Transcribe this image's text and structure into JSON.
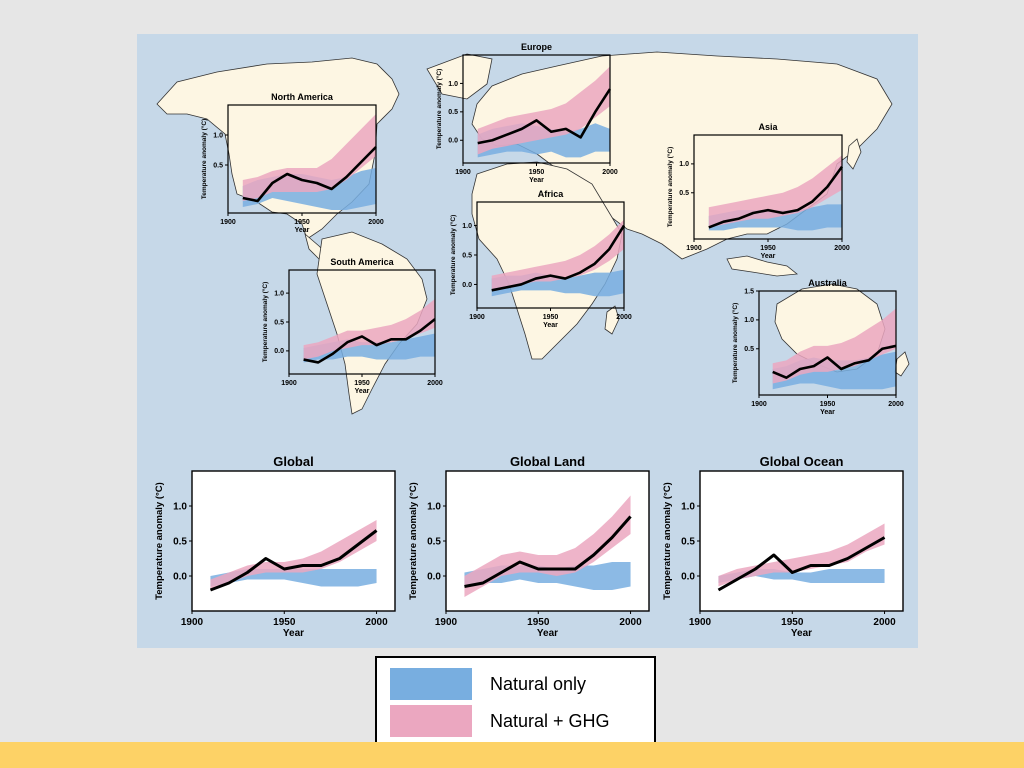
{
  "colors": {
    "page_background": "#e6e6e6",
    "figure_background": "#c6d8e8",
    "land": "#fdf6e3",
    "natural_band": "#78aee0",
    "ghg_band": "#eba7c0",
    "observed_line": "#000000",
    "footer_bar": "#fdd266"
  },
  "legend": {
    "items": [
      {
        "label": "Natural only",
        "color": "#78aee0"
      },
      {
        "label": "Natural + GHG",
        "color": "#eba7c0"
      }
    ]
  },
  "chart_data": [
    {
      "type": "line",
      "title": "North America",
      "ylabel": "Temperature anomaly (°C)",
      "xlabel": "Year",
      "x": [
        1910,
        1920,
        1930,
        1940,
        1950,
        1960,
        1970,
        1980,
        1990,
        2000
      ],
      "xlim": [
        1900,
        2000
      ],
      "ylim": [
        -0.3,
        1.5
      ],
      "xticks": [
        "1900",
        "1950",
        "2000"
      ],
      "yticks": [
        "0.5",
        "1.0"
      ],
      "series": [
        {
          "name": "Natural only",
          "kind": "band",
          "lower": [
            -0.2,
            -0.15,
            -0.05,
            -0.1,
            -0.15,
            -0.2,
            -0.25,
            -0.25,
            -0.2,
            -0.15
          ],
          "upper": [
            0.15,
            0.25,
            0.3,
            0.35,
            0.35,
            0.3,
            0.25,
            0.3,
            0.4,
            0.45
          ]
        },
        {
          "name": "Natural + GHG",
          "kind": "band",
          "lower": [
            -0.1,
            -0.05,
            0.05,
            0.05,
            0.05,
            0.05,
            0.1,
            0.25,
            0.45,
            0.65
          ],
          "upper": [
            0.25,
            0.3,
            0.4,
            0.45,
            0.45,
            0.45,
            0.6,
            0.85,
            1.1,
            1.35
          ]
        },
        {
          "kind": "observed",
          "values": [
            -0.05,
            -0.1,
            0.2,
            0.35,
            0.25,
            0.2,
            0.1,
            0.3,
            0.55,
            0.8
          ]
        }
      ]
    },
    {
      "type": "line",
      "title": "Europe",
      "ylabel": "Temperature anomaly (°C)",
      "xlabel": "Year",
      "x": [
        1910,
        1920,
        1930,
        1940,
        1950,
        1960,
        1970,
        1980,
        1990,
        2000
      ],
      "xlim": [
        1900,
        2000
      ],
      "ylim": [
        -0.4,
        1.5
      ],
      "xticks": [
        "1900",
        "1950",
        "2000"
      ],
      "yticks": [
        "0.0",
        "0.5",
        "1.0"
      ],
      "series": [
        {
          "name": "Natural only",
          "kind": "band",
          "lower": [
            -0.3,
            -0.25,
            -0.2,
            -0.2,
            -0.25,
            -0.2,
            -0.3,
            -0.3,
            -0.2,
            -0.2
          ],
          "upper": [
            0.1,
            0.2,
            0.25,
            0.3,
            0.25,
            0.2,
            0.15,
            0.2,
            0.3,
            0.2
          ]
        },
        {
          "name": "Natural + GHG",
          "kind": "band",
          "lower": [
            -0.25,
            -0.15,
            -0.1,
            -0.05,
            0.0,
            0.05,
            0.1,
            0.2,
            0.4,
            0.6
          ],
          "upper": [
            0.2,
            0.3,
            0.4,
            0.45,
            0.5,
            0.55,
            0.65,
            0.85,
            1.05,
            1.3
          ]
        },
        {
          "kind": "observed",
          "values": [
            -0.05,
            0.0,
            0.1,
            0.2,
            0.35,
            0.15,
            0.2,
            0.05,
            0.5,
            0.9
          ]
        }
      ]
    },
    {
      "type": "line",
      "title": "Asia",
      "ylabel": "Temperature anomaly (°C)",
      "xlabel": "Year",
      "x": [
        1910,
        1920,
        1930,
        1940,
        1950,
        1960,
        1970,
        1980,
        1990,
        2000
      ],
      "xlim": [
        1900,
        2000
      ],
      "ylim": [
        -0.3,
        1.5
      ],
      "xticks": [
        "1900",
        "1950",
        "2000"
      ],
      "yticks": [
        "0.5",
        "1.0"
      ],
      "series": [
        {
          "name": "Natural only",
          "kind": "band",
          "lower": [
            -0.15,
            -0.15,
            -0.1,
            -0.1,
            -0.1,
            -0.1,
            -0.15,
            -0.15,
            -0.1,
            -0.1
          ],
          "upper": [
            0.1,
            0.15,
            0.2,
            0.2,
            0.2,
            0.2,
            0.2,
            0.25,
            0.3,
            0.3
          ]
        },
        {
          "name": "Natural + GHG",
          "kind": "band",
          "lower": [
            -0.1,
            -0.05,
            0.0,
            0.05,
            0.05,
            0.1,
            0.15,
            0.25,
            0.4,
            0.55
          ],
          "upper": [
            0.25,
            0.3,
            0.35,
            0.4,
            0.45,
            0.5,
            0.6,
            0.75,
            0.95,
            1.15
          ]
        },
        {
          "kind": "observed",
          "values": [
            -0.1,
            0.0,
            0.05,
            0.15,
            0.2,
            0.15,
            0.2,
            0.35,
            0.6,
            0.95
          ]
        }
      ]
    },
    {
      "type": "line",
      "title": "Africa",
      "ylabel": "Temperature anomaly (°C)",
      "xlabel": "Year",
      "x": [
        1910,
        1920,
        1930,
        1940,
        1950,
        1960,
        1970,
        1980,
        1990,
        2000
      ],
      "xlim": [
        1900,
        2000
      ],
      "ylim": [
        -0.4,
        1.4
      ],
      "xticks": [
        "1900",
        "1950",
        "2000"
      ],
      "yticks": [
        "0.0",
        "0.5",
        "1.0"
      ],
      "series": [
        {
          "name": "Natural only",
          "kind": "band",
          "lower": [
            -0.2,
            -0.15,
            -0.1,
            -0.1,
            -0.1,
            -0.15,
            -0.15,
            -0.2,
            -0.2,
            -0.15
          ],
          "upper": [
            0.1,
            0.15,
            0.15,
            0.2,
            0.15,
            0.1,
            0.15,
            0.2,
            0.2,
            0.25
          ]
        },
        {
          "name": "Natural + GHG",
          "kind": "band",
          "lower": [
            -0.1,
            -0.05,
            0.0,
            0.05,
            0.05,
            0.1,
            0.15,
            0.25,
            0.4,
            0.6
          ],
          "upper": [
            0.15,
            0.2,
            0.25,
            0.3,
            0.35,
            0.4,
            0.5,
            0.65,
            0.85,
            1.1
          ]
        },
        {
          "kind": "observed",
          "values": [
            -0.1,
            -0.05,
            0.0,
            0.1,
            0.15,
            0.1,
            0.2,
            0.35,
            0.6,
            1.0
          ]
        }
      ]
    },
    {
      "type": "line",
      "title": "South America",
      "ylabel": "Temperature anomaly (°C)",
      "xlabel": "Year",
      "x": [
        1910,
        1920,
        1930,
        1940,
        1950,
        1960,
        1970,
        1980,
        1990,
        2000
      ],
      "xlim": [
        1900,
        2000
      ],
      "ylim": [
        -0.4,
        1.4
      ],
      "xticks": [
        "1900",
        "1950",
        "2000"
      ],
      "yticks": [
        "0.0",
        "0.5",
        "1.0"
      ],
      "series": [
        {
          "name": "Natural only",
          "kind": "band",
          "lower": [
            -0.2,
            -0.15,
            -0.15,
            -0.1,
            -0.1,
            -0.15,
            -0.15,
            -0.15,
            -0.1,
            -0.1
          ],
          "upper": [
            0.05,
            0.1,
            0.15,
            0.2,
            0.15,
            0.15,
            0.15,
            0.2,
            0.25,
            0.3
          ]
        },
        {
          "name": "Natural + GHG",
          "kind": "band",
          "lower": [
            -0.15,
            -0.1,
            0.0,
            0.05,
            0.1,
            0.1,
            0.15,
            0.2,
            0.3,
            0.4
          ],
          "upper": [
            0.1,
            0.15,
            0.25,
            0.35,
            0.35,
            0.4,
            0.45,
            0.55,
            0.7,
            0.9
          ]
        },
        {
          "kind": "observed",
          "values": [
            -0.15,
            -0.2,
            -0.05,
            0.15,
            0.25,
            0.1,
            0.2,
            0.2,
            0.35,
            0.55
          ]
        }
      ]
    },
    {
      "type": "line",
      "title": "Australia",
      "ylabel": "Temperature anomaly (°C)",
      "xlabel": "Year",
      "x": [
        1910,
        1920,
        1930,
        1940,
        1950,
        1960,
        1970,
        1980,
        1990,
        2000
      ],
      "xlim": [
        1900,
        2000
      ],
      "ylim": [
        -0.3,
        1.5
      ],
      "xticks": [
        "1900",
        "1950",
        "2000"
      ],
      "yticks": [
        "0.5",
        "1.0",
        "1.5"
      ],
      "series": [
        {
          "name": "Natural only",
          "kind": "band",
          "lower": [
            -0.2,
            -0.15,
            -0.1,
            -0.1,
            -0.15,
            -0.2,
            -0.2,
            -0.2,
            -0.2,
            -0.15
          ],
          "upper": [
            0.15,
            0.2,
            0.3,
            0.35,
            0.3,
            0.3,
            0.3,
            0.35,
            0.4,
            0.45
          ]
        },
        {
          "name": "Natural + GHG",
          "kind": "band",
          "lower": [
            -0.1,
            -0.05,
            0.05,
            0.1,
            0.1,
            0.15,
            0.2,
            0.3,
            0.4,
            0.5
          ],
          "upper": [
            0.25,
            0.3,
            0.45,
            0.55,
            0.55,
            0.6,
            0.7,
            0.85,
            1.0,
            1.2
          ]
        },
        {
          "kind": "observed",
          "values": [
            0.1,
            0.0,
            0.15,
            0.2,
            0.35,
            0.15,
            0.25,
            0.3,
            0.5,
            0.55
          ]
        }
      ]
    },
    {
      "type": "line",
      "title": "Global",
      "ylabel": "Temperature anomaly (°C)",
      "xlabel": "Year",
      "x": [
        1910,
        1920,
        1930,
        1940,
        1950,
        1960,
        1970,
        1980,
        1990,
        2000
      ],
      "xlim": [
        1900,
        2010
      ],
      "ylim": [
        -0.5,
        1.5
      ],
      "xticks": [
        "1900",
        "1950",
        "2000"
      ],
      "yticks": [
        "0.0",
        "0.5",
        "1.0"
      ],
      "series": [
        {
          "name": "Natural only",
          "kind": "band",
          "lower": [
            -0.15,
            -0.1,
            -0.05,
            -0.05,
            -0.05,
            -0.1,
            -0.15,
            -0.15,
            -0.15,
            -0.1
          ],
          "upper": [
            0.0,
            0.05,
            0.1,
            0.1,
            0.1,
            0.1,
            0.1,
            0.1,
            0.1,
            0.1
          ]
        },
        {
          "name": "Natural + GHG",
          "kind": "band",
          "lower": [
            -0.2,
            -0.1,
            0.0,
            0.05,
            0.05,
            0.05,
            0.1,
            0.2,
            0.35,
            0.5
          ],
          "upper": [
            -0.05,
            0.05,
            0.15,
            0.2,
            0.2,
            0.25,
            0.35,
            0.5,
            0.65,
            0.8
          ]
        },
        {
          "kind": "observed",
          "values": [
            -0.2,
            -0.1,
            0.05,
            0.25,
            0.1,
            0.15,
            0.15,
            0.25,
            0.45,
            0.65
          ]
        }
      ]
    },
    {
      "type": "line",
      "title": "Global Land",
      "ylabel": "Temperature anomaly (°C)",
      "xlabel": "Year",
      "x": [
        1910,
        1920,
        1930,
        1940,
        1950,
        1960,
        1970,
        1980,
        1990,
        2000
      ],
      "xlim": [
        1900,
        2010
      ],
      "ylim": [
        -0.5,
        1.5
      ],
      "xticks": [
        "1900",
        "1950",
        "2000"
      ],
      "yticks": [
        "0.0",
        "0.5",
        "1.0"
      ],
      "series": [
        {
          "name": "Natural only",
          "kind": "band",
          "lower": [
            -0.15,
            -0.1,
            -0.1,
            -0.05,
            -0.1,
            -0.1,
            -0.15,
            -0.2,
            -0.2,
            -0.15
          ],
          "upper": [
            0.05,
            0.1,
            0.15,
            0.15,
            0.15,
            0.1,
            0.15,
            0.15,
            0.2,
            0.2
          ]
        },
        {
          "name": "Natural + GHG",
          "kind": "band",
          "lower": [
            -0.3,
            -0.15,
            0.0,
            0.05,
            0.05,
            0.0,
            0.05,
            0.2,
            0.4,
            0.6
          ],
          "upper": [
            0.0,
            0.15,
            0.3,
            0.35,
            0.3,
            0.3,
            0.4,
            0.6,
            0.85,
            1.15
          ]
        },
        {
          "kind": "observed",
          "values": [
            -0.15,
            -0.1,
            0.05,
            0.2,
            0.1,
            0.1,
            0.1,
            0.3,
            0.55,
            0.85
          ]
        }
      ]
    },
    {
      "type": "line",
      "title": "Global Ocean",
      "ylabel": "Temperature anomaly (°C)",
      "xlabel": "Year",
      "x": [
        1910,
        1920,
        1930,
        1940,
        1950,
        1960,
        1970,
        1980,
        1990,
        2000
      ],
      "xlim": [
        1900,
        2010
      ],
      "ylim": [
        -0.5,
        1.5
      ],
      "xticks": [
        "1900",
        "1950",
        "2000"
      ],
      "yticks": [
        "0.0",
        "0.5",
        "1.0"
      ],
      "series": [
        {
          "name": "Natural only",
          "kind": "band",
          "lower": [
            -0.1,
            -0.05,
            0.0,
            -0.05,
            -0.05,
            -0.1,
            -0.1,
            -0.1,
            -0.1,
            -0.1
          ],
          "upper": [
            0.0,
            0.05,
            0.1,
            0.1,
            0.05,
            0.05,
            0.1,
            0.1,
            0.1,
            0.1
          ]
        },
        {
          "name": "Natural + GHG",
          "kind": "band",
          "lower": [
            -0.15,
            -0.05,
            0.0,
            0.05,
            0.05,
            0.1,
            0.15,
            0.2,
            0.35,
            0.45
          ],
          "upper": [
            0.0,
            0.1,
            0.15,
            0.2,
            0.25,
            0.3,
            0.35,
            0.45,
            0.6,
            0.75
          ]
        },
        {
          "kind": "observed",
          "values": [
            -0.2,
            -0.05,
            0.1,
            0.3,
            0.05,
            0.15,
            0.15,
            0.25,
            0.4,
            0.55
          ]
        }
      ]
    }
  ]
}
